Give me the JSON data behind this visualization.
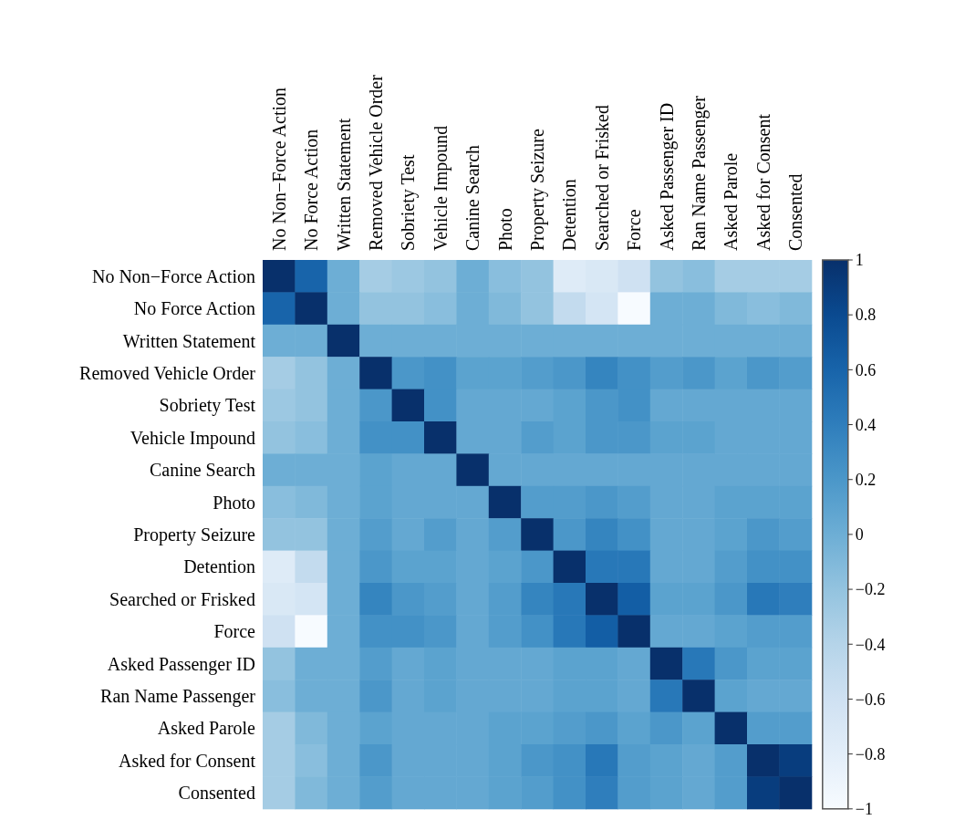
{
  "chart_data": {
    "type": "heatmap",
    "categories": [
      "No Non−Force Action",
      "No Force Action",
      "Written Statement",
      "Removed Vehicle Order",
      "Sobriety Test",
      "Vehicle Impound",
      "Canine Search",
      "Photo",
      "Property Seizure",
      "Detention",
      "Searched or Frisked",
      "Force",
      "Asked Passenger ID",
      "Ran Name Passenger",
      "Asked Parole",
      "Asked for Consent",
      "Consented"
    ],
    "y_categories": [
      "No Non−Force Action",
      "No Force Action",
      "Written Statement",
      "Removed Vehicle Order",
      "Sobriety Test",
      "Vehicle Impound",
      "Canine Search",
      "Photo",
      "Property Seizure",
      "Detention",
      "Searched or Frisked",
      "Force",
      "Asked Passenger ID",
      "Ran Name Passenger",
      "Asked Parole",
      "Asked for Consent",
      "Consented"
    ],
    "cells": [
      [
        1,
        0.6,
        0,
        -0.3,
        -0.25,
        -0.2,
        0,
        -0.15,
        -0.2,
        -0.75,
        -0.7,
        -0.6,
        -0.2,
        -0.15,
        -0.3,
        -0.3,
        -0.3
      ],
      [
        0.6,
        1,
        0,
        -0.2,
        -0.2,
        -0.15,
        0,
        -0.1,
        -0.2,
        -0.5,
        -0.65,
        -1,
        0,
        0,
        -0.1,
        -0.15,
        -0.1
      ],
      [
        0,
        0,
        1,
        0,
        0,
        0,
        0,
        0,
        0,
        0,
        0,
        0,
        0,
        0,
        0,
        0,
        0
      ],
      [
        -0.3,
        -0.2,
        0,
        1,
        0.2,
        0.25,
        0.1,
        0.1,
        0.15,
        0.2,
        0.35,
        0.25,
        0.15,
        0.2,
        0.1,
        0.2,
        0.15
      ],
      [
        -0.25,
        -0.2,
        0,
        0.2,
        1,
        0.25,
        0.05,
        0.05,
        0.05,
        0.1,
        0.2,
        0.25,
        0.05,
        0.05,
        0.05,
        0.05,
        0.05
      ],
      [
        -0.2,
        -0.15,
        0,
        0.25,
        0.25,
        1,
        0.05,
        0.05,
        0.15,
        0.1,
        0.2,
        0.2,
        0.1,
        0.1,
        0.05,
        0.05,
        0.05
      ],
      [
        0,
        0,
        0,
        0.1,
        0.05,
        0.05,
        1,
        0.05,
        0.05,
        0.05,
        0.05,
        0.05,
        0.05,
        0.05,
        0.05,
        0.05,
        0.05
      ],
      [
        -0.15,
        -0.1,
        0,
        0.1,
        0.05,
        0.05,
        0.05,
        1,
        0.15,
        0.15,
        0.2,
        0.15,
        0.05,
        0.05,
        0.1,
        0.1,
        0.1
      ],
      [
        -0.2,
        -0.2,
        0,
        0.15,
        0.05,
        0.15,
        0.05,
        0.15,
        1,
        0.2,
        0.35,
        0.25,
        0.05,
        0.05,
        0.1,
        0.2,
        0.15
      ],
      [
        -0.75,
        -0.5,
        0,
        0.2,
        0.1,
        0.1,
        0.05,
        0.1,
        0.2,
        1,
        0.45,
        0.45,
        0.05,
        0.05,
        0.15,
        0.25,
        0.25
      ],
      [
        -0.7,
        -0.65,
        0,
        0.35,
        0.2,
        0.15,
        0.05,
        0.15,
        0.35,
        0.45,
        1,
        0.65,
        0.1,
        0.1,
        0.2,
        0.45,
        0.4
      ],
      [
        -0.6,
        -1,
        0,
        0.25,
        0.25,
        0.2,
        0.05,
        0.15,
        0.25,
        0.45,
        0.65,
        1,
        0.05,
        0.05,
        0.1,
        0.15,
        0.15
      ],
      [
        -0.2,
        0,
        0,
        0.15,
        0.05,
        0.1,
        0.05,
        0.05,
        0.05,
        0.1,
        0.1,
        0.05,
        1,
        0.45,
        0.2,
        0.1,
        0.1
      ],
      [
        -0.15,
        0,
        0,
        0.2,
        0.05,
        0.1,
        0.05,
        0.05,
        0.05,
        0.1,
        0.1,
        0.05,
        0.45,
        1,
        0.1,
        0.05,
        0.05
      ],
      [
        -0.3,
        -0.1,
        0,
        0.1,
        0.05,
        0.05,
        0.05,
        0.1,
        0.1,
        0.15,
        0.2,
        0.1,
        0.2,
        0.1,
        1,
        0.15,
        0.15
      ],
      [
        -0.3,
        -0.15,
        0,
        0.2,
        0.05,
        0.05,
        0.05,
        0.1,
        0.2,
        0.25,
        0.45,
        0.15,
        0.1,
        0.05,
        0.15,
        1,
        0.9
      ],
      [
        -0.3,
        -0.1,
        0,
        0.15,
        0.05,
        0.05,
        0.05,
        0.1,
        0.15,
        0.25,
        0.4,
        0.15,
        0.1,
        0.05,
        0.15,
        0.9,
        1
      ]
    ],
    "clim": [
      -1,
      1
    ],
    "cticks": [
      {
        "value": -1,
        "label": "−1"
      },
      {
        "value": -0.8,
        "label": "−0.8"
      },
      {
        "value": -0.6,
        "label": "−0.6"
      },
      {
        "value": -0.4,
        "label": "−0.4"
      },
      {
        "value": -0.2,
        "label": "−0.2"
      },
      0,
      0.2,
      0.4,
      0.6,
      0.8,
      1
    ]
  }
}
